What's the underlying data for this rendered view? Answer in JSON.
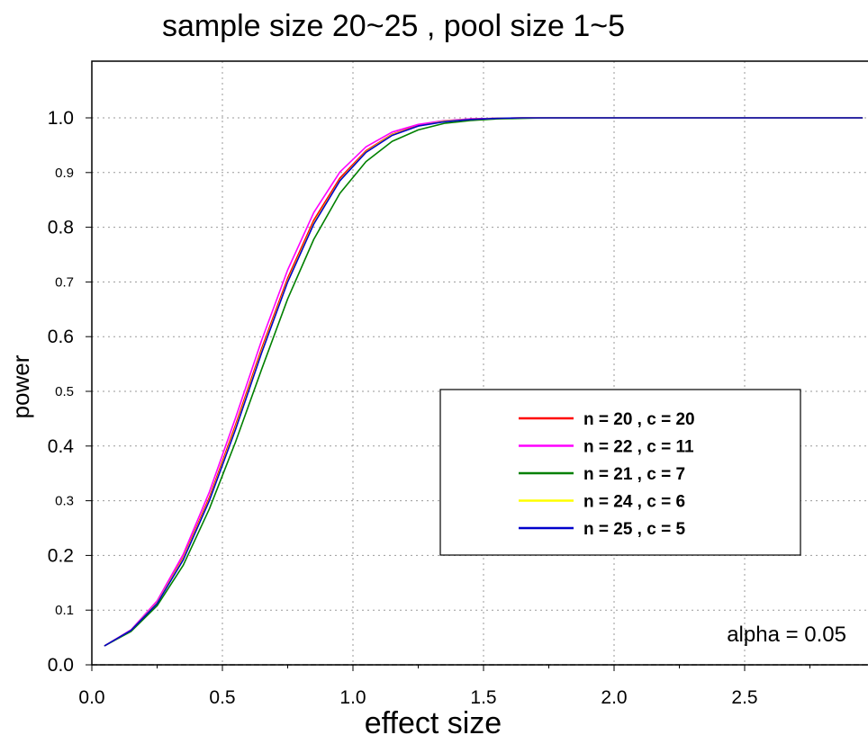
{
  "chart_data": {
    "type": "line",
    "title": "sample size 20~25 , pool size 1~5",
    "xlabel": "effect size",
    "ylabel": "power",
    "annotation": "alpha = 0.05",
    "xlim": [
      0,
      2.95
    ],
    "ylim": [
      0,
      1.1
    ],
    "grid": true,
    "legend_position": "center-right",
    "x_ticks": [
      {
        "value": 0.0,
        "label": "0.0"
      },
      {
        "value": 0.5,
        "label": "0.5"
      },
      {
        "value": 1.0,
        "label": "1.0"
      },
      {
        "value": 1.5,
        "label": "1.5"
      },
      {
        "value": 2.0,
        "label": "2.0"
      },
      {
        "value": 2.5,
        "label": "2.5"
      }
    ],
    "y_ticks": [
      {
        "value": 0.0,
        "label": "0.0",
        "major": true
      },
      {
        "value": 0.1,
        "label": "0.1",
        "major": false
      },
      {
        "value": 0.2,
        "label": "0.2",
        "major": true
      },
      {
        "value": 0.3,
        "label": "0.3",
        "major": false
      },
      {
        "value": 0.4,
        "label": "0.4",
        "major": true
      },
      {
        "value": 0.5,
        "label": "0.5",
        "major": false
      },
      {
        "value": 0.6,
        "label": "0.6",
        "major": true
      },
      {
        "value": 0.7,
        "label": "0.7",
        "major": false
      },
      {
        "value": 0.8,
        "label": "0.8",
        "major": true
      },
      {
        "value": 0.9,
        "label": "0.9",
        "major": false
      },
      {
        "value": 1.0,
        "label": "1.0",
        "major": true
      }
    ],
    "x": [
      0.05,
      0.15,
      0.25,
      0.35,
      0.45,
      0.55,
      0.65,
      0.75,
      0.85,
      0.95,
      1.05,
      1.15,
      1.25,
      1.35,
      1.45,
      1.55,
      1.65,
      1.75,
      2.0,
      2.5,
      2.95
    ],
    "series": [
      {
        "name": "n = 20 , c = 20",
        "color": "#ff0000",
        "values": [
          0.035,
          0.063,
          0.114,
          0.196,
          0.306,
          0.438,
          0.578,
          0.707,
          0.813,
          0.89,
          0.94,
          0.97,
          0.986,
          0.994,
          0.998,
          0.999,
          1.0,
          1.0,
          1.0,
          1.0,
          1.0
        ]
      },
      {
        "name": "n = 22 , c = 11",
        "color": "#ff00ff",
        "values": [
          0.035,
          0.064,
          0.117,
          0.202,
          0.316,
          0.451,
          0.593,
          0.722,
          0.827,
          0.901,
          0.947,
          0.974,
          0.988,
          0.995,
          0.998,
          0.999,
          1.0,
          1.0,
          1.0,
          1.0,
          1.0
        ]
      },
      {
        "name": "n = 21 , c = 7",
        "color": "#008000",
        "values": [
          0.035,
          0.061,
          0.108,
          0.182,
          0.285,
          0.407,
          0.54,
          0.669,
          0.778,
          0.862,
          0.92,
          0.957,
          0.978,
          0.99,
          0.995,
          0.998,
          0.999,
          1.0,
          1.0,
          1.0,
          1.0
        ]
      },
      {
        "name": "n = 24 , c = 6",
        "color": "#ffff00",
        "values": [
          0.035,
          0.063,
          0.113,
          0.194,
          0.302,
          0.433,
          0.573,
          0.702,
          0.808,
          0.886,
          0.938,
          0.969,
          0.985,
          0.994,
          0.997,
          0.999,
          1.0,
          1.0,
          1.0,
          1.0,
          1.0
        ]
      },
      {
        "name": "n = 25 , c = 5",
        "color": "#0000cc",
        "values": [
          0.035,
          0.063,
          0.112,
          0.192,
          0.3,
          0.43,
          0.57,
          0.7,
          0.806,
          0.885,
          0.937,
          0.968,
          0.985,
          0.993,
          0.997,
          0.999,
          1.0,
          1.0,
          1.0,
          1.0,
          1.0
        ]
      }
    ]
  }
}
